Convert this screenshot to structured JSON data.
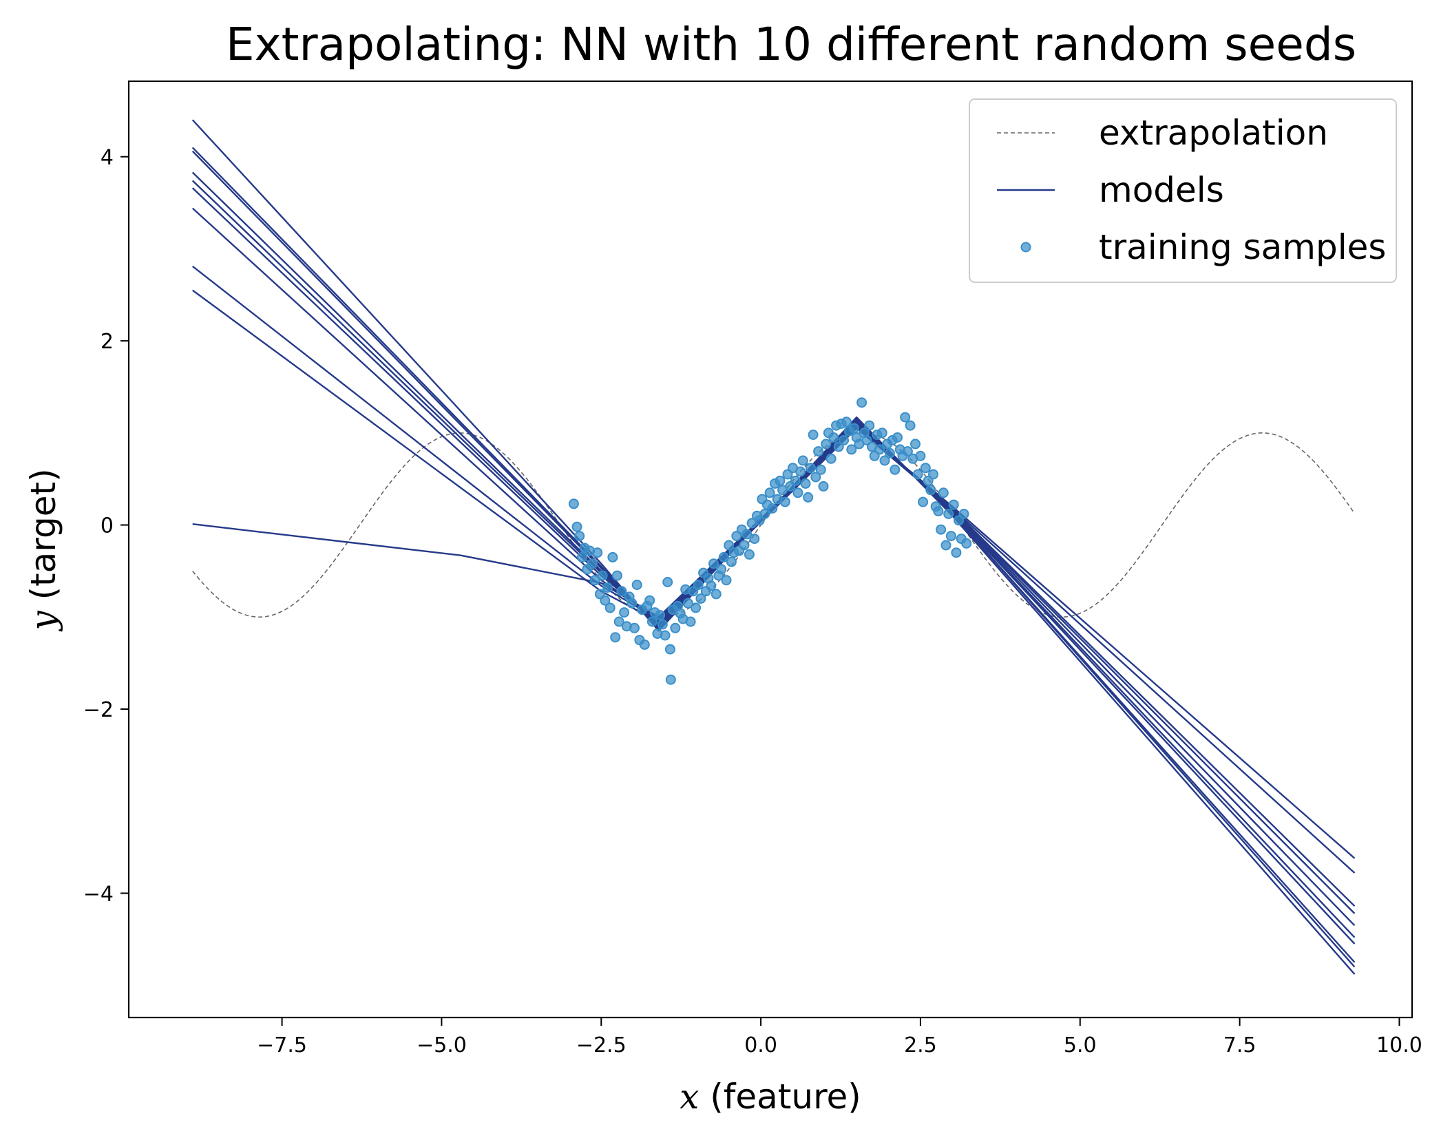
{
  "chart_data": {
    "type": "line",
    "title": "Extrapolating: NN with 10 different random seeds",
    "xlabel_var": "x",
    "xlabel_rest": " (feature)",
    "ylabel_var": "y",
    "ylabel_rest": " (target)",
    "xlim": [
      -9.9,
      10.2
    ],
    "ylim": [
      -5.35,
      4.82
    ],
    "xticks": [
      -7.5,
      -5.0,
      -2.5,
      0.0,
      2.5,
      5.0,
      7.5,
      10.0
    ],
    "xtick_labels": [
      "−7.5",
      "−5.0",
      "−2.5",
      "0.0",
      "2.5",
      "5.0",
      "7.5",
      "10.0"
    ],
    "yticks": [
      -4,
      -2,
      0,
      2,
      4
    ],
    "ytick_labels": [
      "−4",
      "−2",
      "0",
      "2",
      "4"
    ],
    "grid": false,
    "legend_position": "top-right",
    "legend": [
      {
        "label": "extrapolation",
        "kind": "dashed-line"
      },
      {
        "label": "models",
        "kind": "line"
      },
      {
        "label": "training samples",
        "kind": "marker"
      }
    ],
    "colors": {
      "extrapolation": "#666666",
      "models": "#253a8a",
      "samples": "#3a8fc9"
    },
    "extrapolation": {
      "function": "sin(x)",
      "x_range": [
        -8.9,
        9.3
      ]
    },
    "models": [
      {
        "x": [
          -8.9,
          -4.7,
          -2.5,
          -1.6,
          1.5,
          3.0,
          9.3
        ],
        "y": [
          0.01,
          -0.33,
          -0.63,
          -1.0,
          1.07,
          0.2,
          -3.62
        ]
      },
      {
        "x": [
          -8.9,
          -2.5,
          -1.6,
          1.5,
          3.0,
          9.3
        ],
        "y": [
          2.55,
          -0.72,
          -1.05,
          1.05,
          0.18,
          -3.78
        ]
      },
      {
        "x": [
          -8.9,
          -2.5,
          -1.6,
          1.5,
          3.0,
          9.3
        ],
        "y": [
          2.81,
          -0.66,
          -1.03,
          1.06,
          0.17,
          -4.14
        ]
      },
      {
        "x": [
          -8.9,
          -2.5,
          -1.6,
          1.5,
          3.0,
          9.3
        ],
        "y": [
          3.44,
          -0.6,
          -1.02,
          1.08,
          0.16,
          -4.22
        ]
      },
      {
        "x": [
          -8.9,
          -2.5,
          -1.6,
          1.5,
          3.0,
          9.3
        ],
        "y": [
          3.66,
          -0.55,
          -1.06,
          1.1,
          0.15,
          -4.35
        ]
      },
      {
        "x": [
          -8.9,
          -2.5,
          -1.6,
          1.5,
          3.0,
          9.3
        ],
        "y": [
          3.74,
          -0.52,
          -1.08,
          1.12,
          0.14,
          -4.48
        ]
      },
      {
        "x": [
          -8.9,
          -2.5,
          -1.6,
          1.5,
          3.0,
          9.3
        ],
        "y": [
          3.83,
          -0.5,
          -1.1,
          1.13,
          0.13,
          -4.55
        ]
      },
      {
        "x": [
          -8.9,
          -2.5,
          -1.6,
          1.5,
          3.0,
          9.3
        ],
        "y": [
          4.06,
          -0.47,
          -1.12,
          1.15,
          0.12,
          -4.75
        ]
      },
      {
        "x": [
          -8.9,
          -2.5,
          -1.6,
          1.5,
          3.0,
          9.3
        ],
        "y": [
          4.1,
          -0.45,
          -1.13,
          1.15,
          0.12,
          -4.8
        ]
      },
      {
        "x": [
          -8.9,
          -2.5,
          -1.6,
          1.5,
          3.0,
          9.3
        ],
        "y": [
          4.4,
          -0.42,
          -1.15,
          1.17,
          0.1,
          -4.88
        ]
      }
    ],
    "samples": [
      [
        -2.93,
        0.23
      ],
      [
        -2.88,
        -0.02
      ],
      [
        -2.84,
        -0.12
      ],
      [
        -2.8,
        -0.35
      ],
      [
        -2.76,
        -0.25
      ],
      [
        -2.72,
        -0.48
      ],
      [
        -2.68,
        -0.28
      ],
      [
        -2.64,
        -0.42
      ],
      [
        -2.6,
        -0.6
      ],
      [
        -2.56,
        -0.3
      ],
      [
        -2.52,
        -0.75
      ],
      [
        -2.48,
        -0.55
      ],
      [
        -2.44,
        -0.82
      ],
      [
        -2.4,
        -0.68
      ],
      [
        -2.36,
        -0.9
      ],
      [
        -2.32,
        -0.35
      ],
      [
        -2.28,
        -1.22
      ],
      [
        -2.25,
        -0.55
      ],
      [
        -2.22,
        -1.05
      ],
      [
        -2.18,
        -0.72
      ],
      [
        -2.14,
        -0.95
      ],
      [
        -2.1,
        -1.1
      ],
      [
        -2.06,
        -0.78
      ],
      [
        -2.02,
        -0.85
      ],
      [
        -1.98,
        -1.12
      ],
      [
        -1.94,
        -0.65
      ],
      [
        -1.9,
        -1.25
      ],
      [
        -1.86,
        -0.92
      ],
      [
        -1.82,
        -1.3
      ],
      [
        -1.78,
        -0.88
      ],
      [
        -1.74,
        -0.82
      ],
      [
        -1.7,
        -1.05
      ],
      [
        -1.66,
        -0.95
      ],
      [
        -1.62,
        -1.18
      ],
      [
        -1.58,
        -0.98
      ],
      [
        -1.54,
        -1.08
      ],
      [
        -1.5,
        -1.2
      ],
      [
        -1.46,
        -0.62
      ],
      [
        -1.42,
        -1.35
      ],
      [
        -1.41,
        -1.68
      ],
      [
        -1.38,
        -0.92
      ],
      [
        -1.34,
        -1.12
      ],
      [
        -1.3,
        -0.88
      ],
      [
        -1.26,
        -0.96
      ],
      [
        -1.22,
        -1.02
      ],
      [
        -1.18,
        -0.7
      ],
      [
        -1.14,
        -0.85
      ],
      [
        -1.1,
        -1.05
      ],
      [
        -1.06,
        -0.72
      ],
      [
        -1.02,
        -0.9
      ],
      [
        -0.98,
        -0.65
      ],
      [
        -0.94,
        -0.8
      ],
      [
        -0.9,
        -0.52
      ],
      [
        -0.86,
        -0.72
      ],
      [
        -0.82,
        -0.58
      ],
      [
        -0.78,
        -0.66
      ],
      [
        -0.74,
        -0.42
      ],
      [
        -0.7,
        -0.75
      ],
      [
        -0.66,
        -0.55
      ],
      [
        -0.62,
        -0.48
      ],
      [
        -0.58,
        -0.35
      ],
      [
        -0.54,
        -0.6
      ],
      [
        -0.5,
        -0.22
      ],
      [
        -0.46,
        -0.4
      ],
      [
        -0.42,
        -0.3
      ],
      [
        -0.38,
        -0.12
      ],
      [
        -0.34,
        -0.28
      ],
      [
        -0.3,
        -0.05
      ],
      [
        -0.26,
        -0.22
      ],
      [
        -0.22,
        -0.1
      ],
      [
        -0.18,
        -0.32
      ],
      [
        -0.14,
        0.02
      ],
      [
        -0.1,
        -0.15
      ],
      [
        -0.06,
        0.1
      ],
      [
        -0.02,
        0.05
      ],
      [
        0.02,
        0.28
      ],
      [
        0.06,
        0.12
      ],
      [
        0.1,
        0.22
      ],
      [
        0.14,
        0.35
      ],
      [
        0.18,
        0.18
      ],
      [
        0.22,
        0.45
      ],
      [
        0.26,
        0.28
      ],
      [
        0.3,
        0.48
      ],
      [
        0.34,
        0.38
      ],
      [
        0.38,
        0.25
      ],
      [
        0.42,
        0.55
      ],
      [
        0.46,
        0.42
      ],
      [
        0.5,
        0.62
      ],
      [
        0.54,
        0.48
      ],
      [
        0.58,
        0.35
      ],
      [
        0.62,
        0.58
      ],
      [
        0.66,
        0.7
      ],
      [
        0.7,
        0.45
      ],
      [
        0.74,
        0.3
      ],
      [
        0.78,
        0.62
      ],
      [
        0.82,
        0.98
      ],
      [
        0.86,
        0.52
      ],
      [
        0.9,
        0.8
      ],
      [
        0.94,
        0.6
      ],
      [
        0.98,
        0.42
      ],
      [
        1.02,
        0.88
      ],
      [
        1.06,
        1.0
      ],
      [
        1.1,
        0.72
      ],
      [
        1.14,
        0.95
      ],
      [
        1.18,
        1.08
      ],
      [
        1.22,
        0.85
      ],
      [
        1.26,
        1.1
      ],
      [
        1.3,
        0.92
      ],
      [
        1.34,
        1.12
      ],
      [
        1.38,
        1.02
      ],
      [
        1.42,
        0.82
      ],
      [
        1.46,
        1.05
      ],
      [
        1.5,
        0.95
      ],
      [
        1.54,
        0.88
      ],
      [
        1.58,
        1.33
      ],
      [
        1.62,
        1.0
      ],
      [
        1.66,
        0.92
      ],
      [
        1.7,
        1.08
      ],
      [
        1.74,
        0.85
      ],
      [
        1.78,
        0.75
      ],
      [
        1.82,
        0.98
      ],
      [
        1.86,
        0.82
      ],
      [
        1.9,
        1.0
      ],
      [
        1.94,
        0.7
      ],
      [
        1.98,
        0.88
      ],
      [
        2.02,
        0.78
      ],
      [
        2.06,
        0.92
      ],
      [
        2.1,
        0.6
      ],
      [
        2.14,
        0.95
      ],
      [
        2.18,
        0.82
      ],
      [
        2.22,
        0.75
      ],
      [
        2.26,
        1.17
      ],
      [
        2.3,
        0.8
      ],
      [
        2.34,
        1.08
      ],
      [
        2.38,
        0.72
      ],
      [
        2.42,
        0.88
      ],
      [
        2.46,
        0.55
      ],
      [
        2.5,
        0.75
      ],
      [
        2.54,
        0.25
      ],
      [
        2.58,
        0.62
      ],
      [
        2.62,
        0.48
      ],
      [
        2.66,
        0.38
      ],
      [
        2.7,
        0.55
      ],
      [
        2.74,
        0.2
      ],
      [
        2.78,
        0.15
      ],
      [
        2.82,
        -0.05
      ],
      [
        2.86,
        0.35
      ],
      [
        2.9,
        -0.22
      ],
      [
        2.94,
        0.12
      ],
      [
        2.98,
        -0.12
      ],
      [
        3.02,
        0.22
      ],
      [
        3.06,
        -0.3
      ],
      [
        3.1,
        0.05
      ],
      [
        3.14,
        -0.15
      ],
      [
        3.18,
        0.12
      ],
      [
        3.22,
        -0.2
      ]
    ]
  }
}
